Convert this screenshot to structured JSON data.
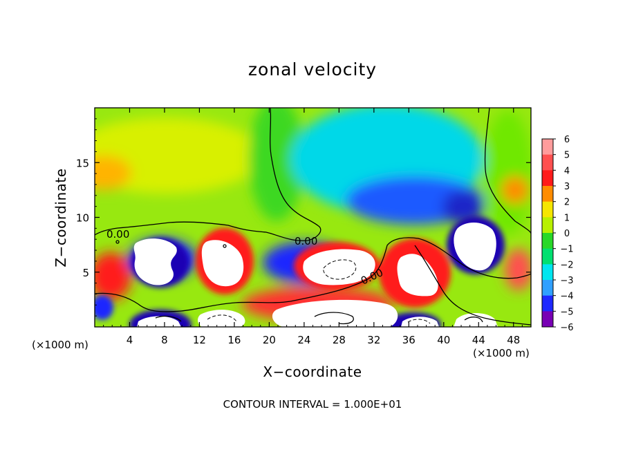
{
  "chart_data": {
    "type": "heatmap",
    "title": "zonal velocity",
    "xlabel": "X−coordinate",
    "ylabel": "Z−coordinate",
    "x_unit_label": "(×1000 m)",
    "xlim": [
      0,
      50
    ],
    "ylim": [
      0,
      20
    ],
    "x_ticks": [
      4,
      8,
      12,
      16,
      20,
      24,
      28,
      32,
      36,
      40,
      44,
      48
    ],
    "y_ticks": [
      5,
      10,
      15
    ],
    "colorbar": {
      "min": -6,
      "max": 6,
      "labels": [
        "6",
        "5",
        "4",
        "3",
        "2",
        "1",
        "0",
        "−1",
        "−2",
        "−3",
        "−4",
        "−5",
        "−6"
      ],
      "colors": [
        "#ff9c9c",
        "#ff5050",
        "#ff1a1a",
        "#ff8c00",
        "#f5e600",
        "#b8f000",
        "#28d828",
        "#00e070",
        "#00e6f0",
        "#30a0ff",
        "#1e28ff",
        "#1e00b4",
        "#7800b4"
      ]
    },
    "contour_labels": [
      "0.00",
      "0.00",
      "0.00"
    ],
    "contour_interval_text": "CONTOUR INTERVAL = 1.000E+01",
    "features": [
      {
        "type": "positive-max",
        "x": 15,
        "z": 5.5
      },
      {
        "type": "negative-min",
        "x": 7,
        "z": 5.5
      },
      {
        "type": "positive-max",
        "x": 27,
        "z": 5
      },
      {
        "type": "positive-max",
        "x": 36,
        "z": 4.5
      },
      {
        "type": "negative-min",
        "x": 42,
        "z": 8
      },
      {
        "type": "positive-band",
        "x": 30,
        "z": 1
      }
    ]
  }
}
